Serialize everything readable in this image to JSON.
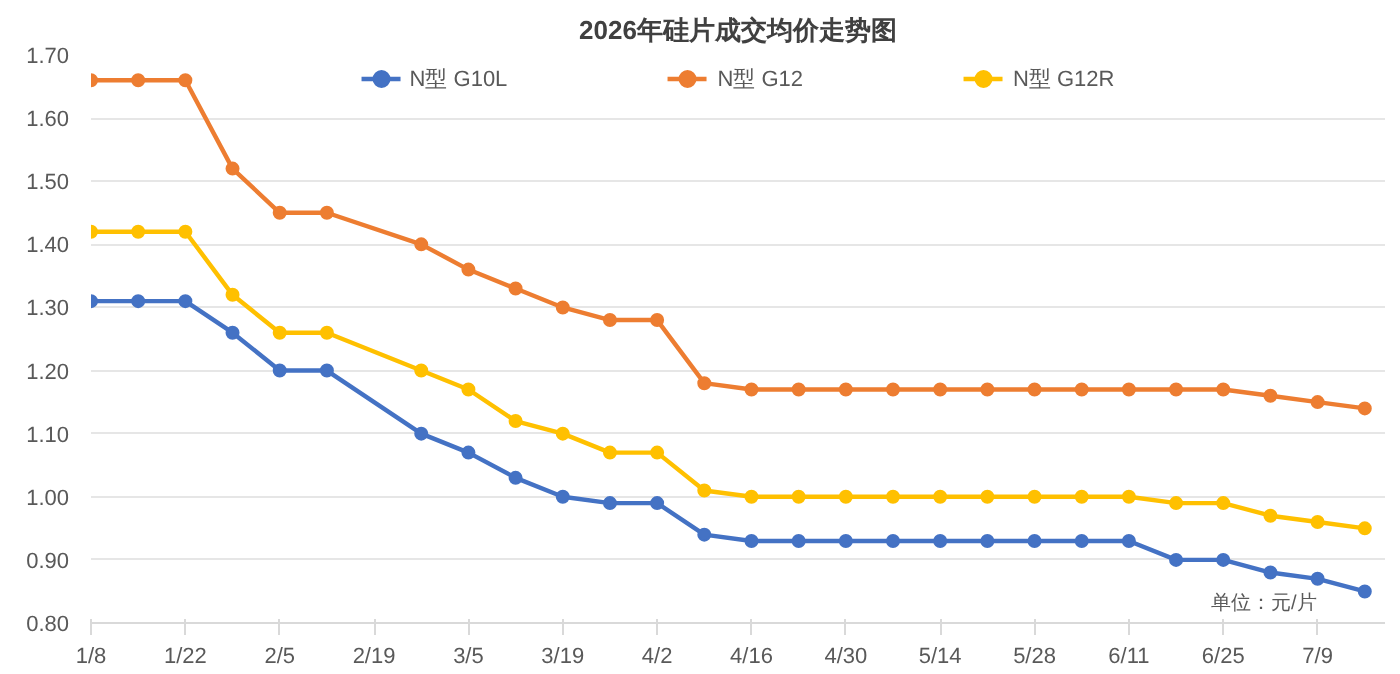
{
  "chart_data": {
    "type": "line",
    "title": "2026年硅片成交均价走势图",
    "x": [
      "2026-01-08",
      "2026-01-15",
      "2026-01-22",
      "2026-01-29",
      "2026-02-05",
      "2026-02-12",
      "2026-02-26",
      "2026-03-05",
      "2026-03-12",
      "2026-03-19",
      "2026-03-26",
      "2026-04-02",
      "2026-04-09",
      "2026-04-16",
      "2026-04-23",
      "2026-04-30",
      "2026-05-07",
      "2026-05-14",
      "2026-05-21",
      "2026-05-28",
      "2026-06-04",
      "2026-06-11",
      "2026-06-18",
      "2026-06-25",
      "2026-07-02",
      "2026-07-09",
      "2026-07-16"
    ],
    "series": [
      {
        "name": "N型 G10L",
        "color": "#4472c4",
        "values": [
          1.31,
          1.31,
          1.31,
          1.26,
          1.2,
          1.2,
          1.1,
          1.07,
          1.03,
          1.0,
          0.99,
          0.99,
          0.94,
          0.93,
          0.93,
          0.93,
          0.93,
          0.93,
          0.93,
          0.93,
          0.93,
          0.93,
          0.9,
          0.9,
          0.88,
          0.87,
          0.85
        ]
      },
      {
        "name": "N型 G12",
        "color": "#ed7d31",
        "values": [
          1.66,
          1.66,
          1.66,
          1.52,
          1.45,
          1.45,
          1.4,
          1.36,
          1.33,
          1.3,
          1.28,
          1.28,
          1.18,
          1.17,
          1.17,
          1.17,
          1.17,
          1.17,
          1.17,
          1.17,
          1.17,
          1.17,
          1.17,
          1.17,
          1.16,
          1.15,
          1.14
        ]
      },
      {
        "name": "N型 G12R",
        "color": "#ffc000",
        "values": [
          1.42,
          1.42,
          1.42,
          1.32,
          1.26,
          1.26,
          1.2,
          1.17,
          1.12,
          1.1,
          1.07,
          1.07,
          1.01,
          1.0,
          1.0,
          1.0,
          1.0,
          1.0,
          1.0,
          1.0,
          1.0,
          1.0,
          0.99,
          0.99,
          0.97,
          0.96,
          0.95
        ]
      }
    ],
    "xlim": [
      "2026-01-08",
      "2026-07-19"
    ],
    "xticks": [
      {
        "value": "2026-01-08",
        "label": "1/8"
      },
      {
        "value": "2026-01-22",
        "label": "1/22"
      },
      {
        "value": "2026-02-05",
        "label": "2/5"
      },
      {
        "value": "2026-02-19",
        "label": "2/19"
      },
      {
        "value": "2026-03-05",
        "label": "3/5"
      },
      {
        "value": "2026-03-19",
        "label": "3/19"
      },
      {
        "value": "2026-04-02",
        "label": "4/2"
      },
      {
        "value": "2026-04-16",
        "label": "4/16"
      },
      {
        "value": "2026-04-30",
        "label": "4/30"
      },
      {
        "value": "2026-05-14",
        "label": "5/14"
      },
      {
        "value": "2026-05-28",
        "label": "5/28"
      },
      {
        "value": "2026-06-11",
        "label": "6/11"
      },
      {
        "value": "2026-06-25",
        "label": "6/25"
      },
      {
        "value": "2026-07-09",
        "label": "7/9"
      }
    ],
    "ylim": [
      0.8,
      1.7
    ],
    "yticks": [
      {
        "value": 0.8,
        "label": "0.80"
      },
      {
        "value": 0.9,
        "label": "0.90"
      },
      {
        "value": 1.0,
        "label": "1.00"
      },
      {
        "value": 1.1,
        "label": "1.10"
      },
      {
        "value": 1.2,
        "label": "1.20"
      },
      {
        "value": 1.3,
        "label": "1.30"
      },
      {
        "value": 1.4,
        "label": "1.40"
      },
      {
        "value": 1.5,
        "label": "1.50"
      },
      {
        "value": 1.6,
        "label": "1.60"
      },
      {
        "value": 1.7,
        "label": "1.70"
      }
    ],
    "grid": "y",
    "legend": "top",
    "marker": "circle",
    "line_style": "solid",
    "annotations": [
      "单位：元/片"
    ]
  }
}
